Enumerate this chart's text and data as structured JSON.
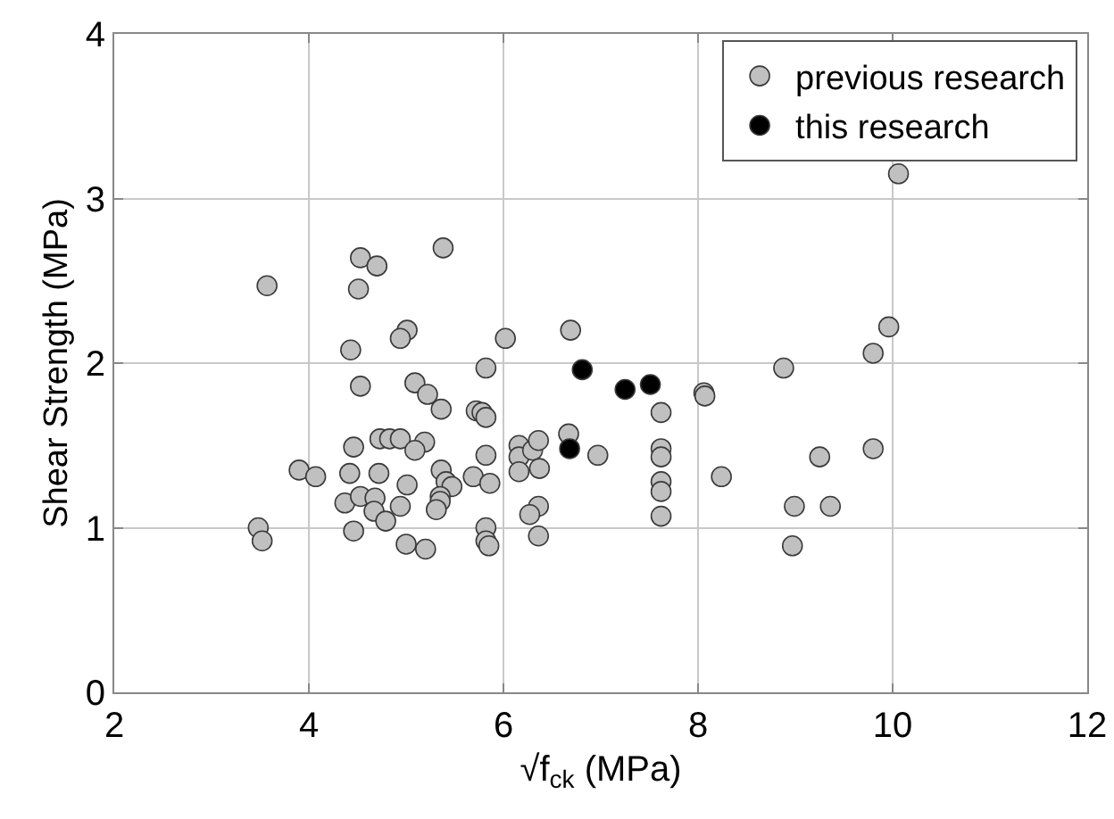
{
  "chart_data": {
    "type": "scatter",
    "xlabel": "√f$_{ck}$ (MPa)",
    "ylabel": "Shear Strength (MPa)",
    "xlim": [
      2,
      12
    ],
    "xticks": [
      2,
      4,
      6,
      8,
      10,
      12
    ],
    "ylim": [
      0,
      4
    ],
    "yticks": [
      0,
      1,
      2,
      3,
      4
    ],
    "grid": true,
    "legend": "top right",
    "marker": "circle",
    "series": [
      {
        "name": "previous research",
        "color": "#c0c0c0",
        "x": [
          3.57,
          4.53,
          4.7,
          5.38,
          4.51,
          5.01,
          4.94,
          4.43,
          4.53,
          5.09,
          5.22,
          5.36,
          5.72,
          4.73,
          4.83,
          4.94,
          5.19,
          5.09,
          4.46,
          3.9,
          4.07,
          4.42,
          4.72,
          5.01,
          5.36,
          5.69,
          5.41,
          5.47,
          5.35,
          5.35,
          4.37,
          4.53,
          4.68,
          4.67,
          4.94,
          4.79,
          5.31,
          4.46,
          5.0,
          5.2,
          3.48,
          3.52,
          6.02,
          6.69,
          5.82,
          5.78,
          5.82,
          5.82,
          5.86,
          5.82,
          5.82,
          5.85,
          6.16,
          6.16,
          6.16,
          6.3,
          6.36,
          6.37,
          6.36,
          6.27,
          6.36,
          6.67,
          6.97,
          7.62,
          7.62,
          7.62,
          7.62,
          7.62,
          7.62,
          8.06,
          8.07,
          8.24,
          8.88,
          8.99,
          8.97,
          10.06,
          9.96,
          9.8,
          9.25,
          9.8,
          9.36
        ],
        "values": [
          2.47,
          2.64,
          2.59,
          2.7,
          2.45,
          2.2,
          2.15,
          2.08,
          1.86,
          1.88,
          1.81,
          1.72,
          1.71,
          1.54,
          1.54,
          1.54,
          1.52,
          1.47,
          1.49,
          1.35,
          1.31,
          1.33,
          1.33,
          1.26,
          1.35,
          1.31,
          1.28,
          1.25,
          1.19,
          1.16,
          1.15,
          1.19,
          1.18,
          1.1,
          1.13,
          1.04,
          1.11,
          0.98,
          0.9,
          0.87,
          1.0,
          0.92,
          2.15,
          2.2,
          1.97,
          1.7,
          1.67,
          1.44,
          1.27,
          1.0,
          0.92,
          0.89,
          1.5,
          1.43,
          1.34,
          1.47,
          1.53,
          1.36,
          1.13,
          1.08,
          0.95,
          1.57,
          1.44,
          1.7,
          1.48,
          1.43,
          1.28,
          1.22,
          1.07,
          1.82,
          1.8,
          1.31,
          1.97,
          1.13,
          0.89,
          3.15,
          2.22,
          2.06,
          1.43,
          1.48,
          1.13
        ]
      },
      {
        "name": "this research",
        "color": "#000000",
        "x": [
          6.81,
          7.25,
          7.51,
          6.68
        ],
        "values": [
          1.96,
          1.84,
          1.87,
          1.48
        ]
      }
    ]
  }
}
